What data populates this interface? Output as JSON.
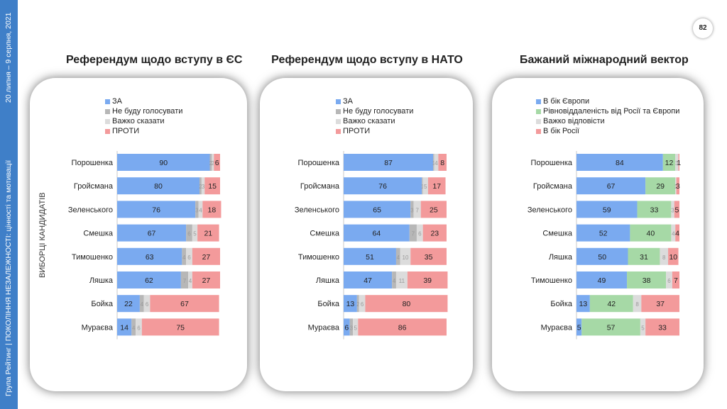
{
  "sidebar": {
    "text": "Група Рейтинг | ПОКОЛІННЯ НЕЗАЛЕЖНОСТІ: цінності та мотивації",
    "date": "20 липня – 9 серпня, 2021"
  },
  "page_number": "82",
  "colors": {
    "blue": "#7aaaf0",
    "gray": "#b7b7b7",
    "light_gray": "#dcdcdc",
    "red": "#f39a9b",
    "green": "#a6d9a6",
    "sidebar": "#3f7fc8"
  },
  "chart_data": [
    {
      "type": "bar",
      "stacked": true,
      "orientation": "horizontal",
      "title": "Референдум щодо вступу в ЄС",
      "ylabel": "ВИБОРЦІ КАНДИДАТІВ",
      "categories": [
        "Порошенка",
        "Гройсмана",
        "Зеленського",
        "Смешка",
        "Тимошенко",
        "Ляшка",
        "Бойка",
        "Мураєва"
      ],
      "series": [
        {
          "name": "ЗА",
          "color": "#7aaaf0",
          "values": [
            90,
            80,
            76,
            67,
            63,
            62,
            22,
            14
          ]
        },
        {
          "name": "Не буду голосувати",
          "color": "#b7b7b7",
          "values": [
            2,
            2,
            3,
            6,
            4,
            7,
            4,
            4
          ]
        },
        {
          "name": "Важко сказати",
          "color": "#dcdcdc",
          "values": [
            2,
            3,
            4,
            5,
            6,
            4,
            6,
            6
          ]
        },
        {
          "name": "ПРОТИ",
          "color": "#f39a9b",
          "values": [
            6,
            15,
            18,
            21,
            27,
            27,
            67,
            75
          ]
        }
      ],
      "xlim": [
        0,
        100
      ]
    },
    {
      "type": "bar",
      "stacked": true,
      "orientation": "horizontal",
      "title": "Референдум щодо вступу в НАТО",
      "categories": [
        "Порошенка",
        "Гройсмана",
        "Зеленського",
        "Смешка",
        "Тимошенко",
        "Ляшка",
        "Бойка",
        "Мураєва"
      ],
      "series": [
        {
          "name": "ЗА",
          "color": "#7aaaf0",
          "values": [
            87,
            76,
            65,
            64,
            51,
            47,
            13,
            6
          ]
        },
        {
          "name": "Не буду голосувати",
          "color": "#b7b7b7",
          "values": [
            1,
            1,
            3,
            7,
            4,
            4,
            2,
            3
          ]
        },
        {
          "name": "Важко сказати",
          "color": "#dcdcdc",
          "values": [
            4,
            5,
            7,
            6,
            10,
            11,
            6,
            5
          ]
        },
        {
          "name": "ПРОТИ",
          "color": "#f39a9b",
          "values": [
            8,
            17,
            25,
            23,
            35,
            39,
            80,
            86
          ]
        }
      ],
      "xlim": [
        0,
        100
      ]
    },
    {
      "type": "bar",
      "stacked": true,
      "orientation": "horizontal",
      "title": "Бажаний міжнародний вектор",
      "categories": [
        "Порошенка",
        "Гройсмана",
        "Зеленського",
        "Смешка",
        "Ляшка",
        "Тимошенко",
        "Бойка",
        "Мураєва"
      ],
      "series": [
        {
          "name": "В бік Європи",
          "color": "#7aaaf0",
          "values": [
            84,
            67,
            59,
            52,
            50,
            49,
            13,
            5
          ]
        },
        {
          "name": "Рівновіддаленість від Росії та Європи",
          "color": "#a6d9a6",
          "values": [
            12,
            29,
            33,
            40,
            31,
            38,
            42,
            57
          ]
        },
        {
          "name": "Важко відповісти",
          "color": "#dcdcdc",
          "values": [
            3,
            1,
            3,
            4,
            8,
            6,
            8,
            5
          ]
        },
        {
          "name": "В бік Росії",
          "color": "#f39a9b",
          "values": [
            1,
            3,
            5,
            4,
            10,
            7,
            37,
            33
          ]
        }
      ],
      "xlim": [
        0,
        100
      ]
    }
  ]
}
